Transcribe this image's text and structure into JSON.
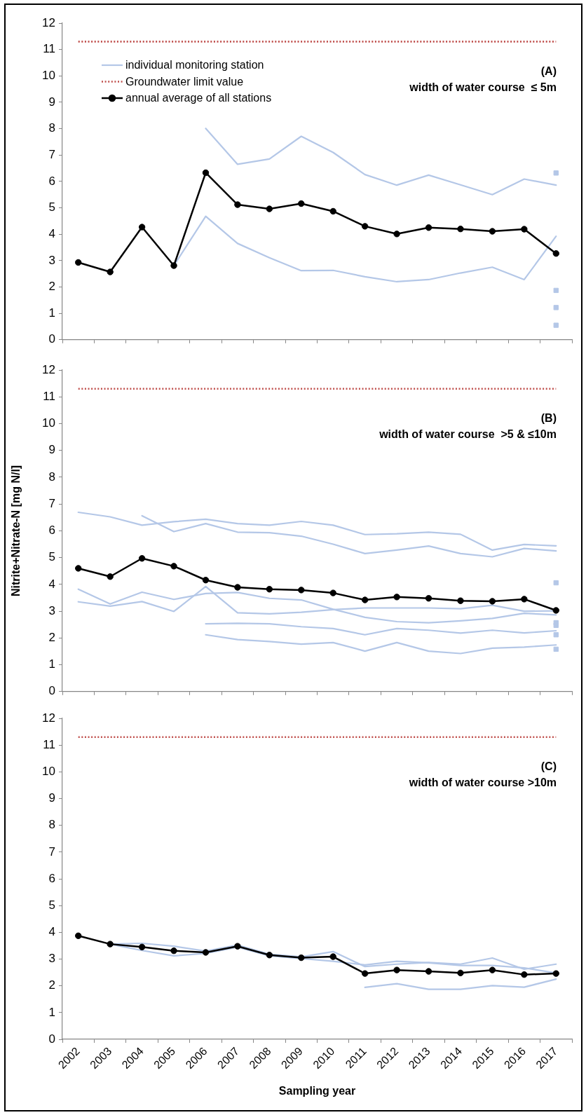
{
  "chart_data": [
    {
      "type": "line",
      "categories": [
        "2002",
        "2003",
        "2004",
        "2005",
        "2006",
        "2007",
        "2008",
        "2009",
        "2010",
        "2011",
        "2012",
        "2013",
        "2014",
        "2015",
        "2016",
        "2017"
      ],
      "ylim": [
        0,
        12
      ],
      "yticks": [
        0,
        1,
        2,
        3,
        4,
        5,
        6,
        7,
        8,
        9,
        10,
        11,
        12
      ],
      "tick_labels": "y",
      "legend": "top left",
      "annotations": [
        "(A)",
        "width of water course  ≤ 5m"
      ],
      "ref_lines": [
        {
          "axis": "y",
          "value": 11.3,
          "label": "Groundwater limit value",
          "color": "#c0504d",
          "line_style": "dotted"
        }
      ],
      "series": [
        {
          "name": "individual monitoring station",
          "color": "#b4c7e7",
          "values": [
            null,
            null,
            null,
            null,
            8.01,
            6.65,
            6.85,
            7.71,
            7.1,
            6.26,
            5.86,
            6.24,
            5.87,
            5.5,
            6.09,
            5.86
          ]
        },
        {
          "color": "#b4c7e7",
          "values": [
            null,
            null,
            null,
            2.81,
            4.68,
            3.65,
            3.11,
            2.62,
            2.63,
            2.39,
            2.2,
            2.28,
            2.53,
            2.75,
            2.28,
            3.92
          ]
        },
        {
          "type": "scatter",
          "color": "#b4c7e7",
          "marker": "square",
          "values": [
            null,
            null,
            null,
            null,
            null,
            null,
            null,
            null,
            null,
            null,
            null,
            null,
            null,
            null,
            null,
            6.32
          ]
        },
        {
          "type": "scatter",
          "color": "#b4c7e7",
          "marker": "square",
          "values": [
            null,
            null,
            null,
            null,
            null,
            null,
            null,
            null,
            null,
            null,
            null,
            null,
            null,
            null,
            null,
            1.87
          ]
        },
        {
          "type": "scatter",
          "color": "#b4c7e7",
          "marker": "square",
          "values": [
            null,
            null,
            null,
            null,
            null,
            null,
            null,
            null,
            null,
            null,
            null,
            null,
            null,
            null,
            null,
            1.22
          ]
        },
        {
          "type": "scatter",
          "color": "#b4c7e7",
          "marker": "square",
          "values": [
            null,
            null,
            null,
            null,
            null,
            null,
            null,
            null,
            null,
            null,
            null,
            null,
            null,
            null,
            null,
            0.55
          ]
        },
        {
          "name": "annual average of all stations",
          "color": "#000000",
          "marker": "circle",
          "values": [
            2.93,
            2.57,
            4.27,
            2.81,
            6.33,
            5.12,
            4.96,
            5.16,
            4.87,
            4.3,
            4.01,
            4.25,
            4.2,
            4.11,
            4.19,
            3.27
          ]
        }
      ]
    },
    {
      "type": "line",
      "categories": [
        "2002",
        "2003",
        "2004",
        "2005",
        "2006",
        "2007",
        "2008",
        "2009",
        "2010",
        "2011",
        "2012",
        "2013",
        "2014",
        "2015",
        "2016",
        "2017"
      ],
      "ylim": [
        0,
        12
      ],
      "yticks": [
        0,
        1,
        2,
        3,
        4,
        5,
        6,
        7,
        8,
        9,
        10,
        11,
        12
      ],
      "tick_labels": "y",
      "ylabel": "Nitrite+Nitrate-N [mg N/l]",
      "annotations": [
        "(B)",
        "width of water course  >5 & ≤10m"
      ],
      "ref_lines": [
        {
          "axis": "y",
          "value": 11.3,
          "color": "#c0504d",
          "line_style": "dotted"
        }
      ],
      "series": [
        {
          "color": "#b4c7e7",
          "values": [
            6.69,
            6.52,
            6.21,
            6.34,
            6.43,
            6.27,
            6.21,
            6.35,
            6.21,
            5.86,
            5.89,
            5.95,
            5.87,
            5.28,
            5.49,
            5.44
          ]
        },
        {
          "color": "#b4c7e7",
          "values": [
            null,
            null,
            6.56,
            5.97,
            6.27,
            5.95,
            5.93,
            5.8,
            5.5,
            5.15,
            5.28,
            5.43,
            5.15,
            5.03,
            5.34,
            5.25
          ]
        },
        {
          "color": "#b4c7e7",
          "values": [
            3.82,
            3.27,
            3.71,
            3.44,
            3.66,
            3.7,
            3.48,
            3.42,
            3.07,
            2.77,
            2.61,
            2.57,
            2.64,
            2.73,
            2.92,
            2.86
          ]
        },
        {
          "color": "#b4c7e7",
          "values": [
            3.35,
            3.19,
            3.36,
            2.99,
            3.92,
            2.94,
            2.9,
            2.96,
            3.06,
            3.12,
            3.12,
            3.12,
            3.09,
            3.22,
            3.0,
            3.01
          ]
        },
        {
          "color": "#b4c7e7",
          "values": [
            null,
            null,
            null,
            null,
            2.53,
            2.55,
            2.53,
            2.42,
            2.35,
            2.12,
            2.35,
            2.29,
            2.18,
            2.29,
            2.19,
            2.27
          ]
        },
        {
          "color": "#b4c7e7",
          "values": [
            null,
            null,
            null,
            null,
            2.12,
            1.94,
            1.87,
            1.77,
            1.83,
            1.51,
            1.83,
            1.51,
            1.42,
            1.62,
            1.66,
            1.74
          ]
        },
        {
          "type": "scatter",
          "color": "#b4c7e7",
          "marker": "square",
          "values": [
            null,
            null,
            null,
            null,
            null,
            null,
            null,
            null,
            null,
            null,
            null,
            null,
            null,
            null,
            null,
            4.06
          ]
        },
        {
          "type": "scatter",
          "color": "#b4c7e7",
          "marker": "square",
          "values": [
            null,
            null,
            null,
            null,
            null,
            null,
            null,
            null,
            null,
            null,
            null,
            null,
            null,
            null,
            null,
            2.57
          ]
        },
        {
          "type": "scatter",
          "color": "#b4c7e7",
          "marker": "square",
          "values": [
            null,
            null,
            null,
            null,
            null,
            null,
            null,
            null,
            null,
            null,
            null,
            null,
            null,
            null,
            null,
            2.47
          ]
        },
        {
          "type": "scatter",
          "color": "#b4c7e7",
          "marker": "square",
          "values": [
            null,
            null,
            null,
            null,
            null,
            null,
            null,
            null,
            null,
            null,
            null,
            null,
            null,
            null,
            null,
            2.12
          ]
        },
        {
          "type": "scatter",
          "color": "#b4c7e7",
          "marker": "square",
          "values": [
            null,
            null,
            null,
            null,
            null,
            null,
            null,
            null,
            null,
            null,
            null,
            null,
            null,
            null,
            null,
            1.58
          ]
        },
        {
          "color": "#000000",
          "marker": "circle",
          "values": [
            4.6,
            4.29,
            4.97,
            4.68,
            4.16,
            3.89,
            3.82,
            3.79,
            3.68,
            3.42,
            3.53,
            3.48,
            3.39,
            3.37,
            3.45,
            3.03
          ]
        }
      ]
    },
    {
      "type": "line",
      "categories": [
        "2002",
        "2003",
        "2004",
        "2005",
        "2006",
        "2007",
        "2008",
        "2009",
        "2010",
        "2011",
        "2012",
        "2013",
        "2014",
        "2015",
        "2016",
        "2017"
      ],
      "ylim": [
        0,
        12
      ],
      "yticks": [
        0,
        1,
        2,
        3,
        4,
        5,
        6,
        7,
        8,
        9,
        10,
        11,
        12
      ],
      "xlabel": "Sampling year",
      "annotations": [
        "(C)",
        "width of water course >10m"
      ],
      "ref_lines": [
        {
          "axis": "y",
          "value": 11.3,
          "color": "#c0504d",
          "line_style": "dotted"
        }
      ],
      "series": [
        {
          "color": "#b4c7e7",
          "values": [
            null,
            3.56,
            3.59,
            3.48,
            3.3,
            3.52,
            3.18,
            3.08,
            3.28,
            2.72,
            2.81,
            2.87,
            2.81,
            3.04,
            2.62,
            2.81
          ]
        },
        {
          "color": "#b4c7e7",
          "values": [
            null,
            3.56,
            3.32,
            3.12,
            3.21,
            3.45,
            3.12,
            3.02,
            2.92,
            2.78,
            2.92,
            2.86,
            2.76,
            2.76,
            2.67,
            2.48
          ]
        },
        {
          "color": "#b4c7e7",
          "values": [
            null,
            null,
            null,
            null,
            null,
            null,
            null,
            null,
            null,
            1.94,
            2.08,
            1.87,
            1.87,
            2.01,
            1.95,
            2.25
          ]
        },
        {
          "color": "#000000",
          "marker": "circle",
          "values": [
            3.87,
            3.56,
            3.45,
            3.31,
            3.25,
            3.48,
            3.15,
            3.05,
            3.09,
            2.46,
            2.59,
            2.54,
            2.48,
            2.59,
            2.42,
            2.46
          ]
        }
      ]
    }
  ]
}
